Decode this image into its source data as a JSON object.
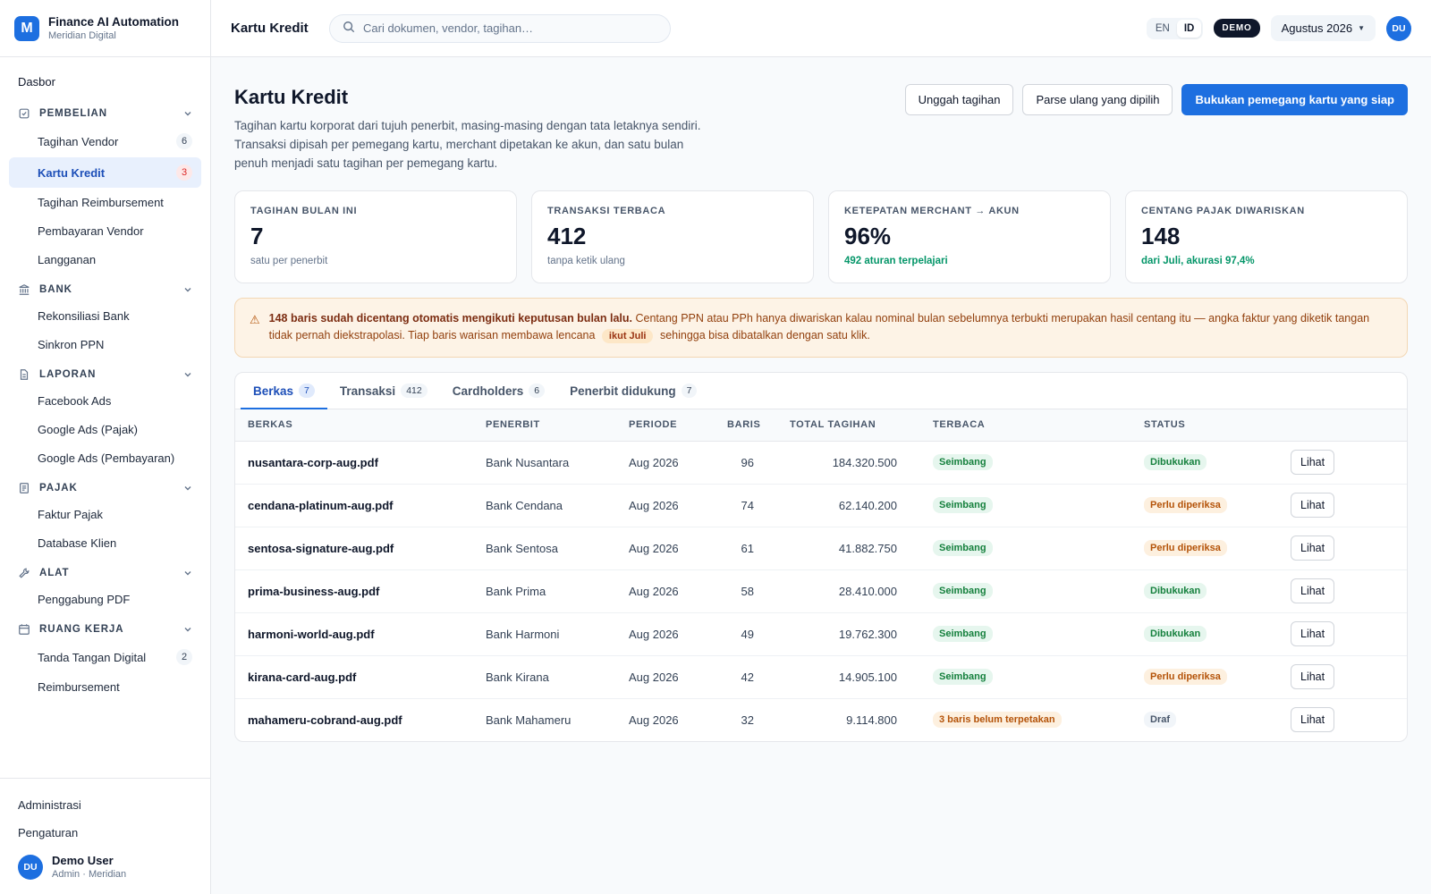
{
  "brand": {
    "logo_letter": "M",
    "name": "Finance AI Automation",
    "org": "Meridian Digital"
  },
  "sidebar": {
    "top_item": "Dasbor",
    "groups": [
      {
        "label": "PEMBELIAN",
        "icon": "cart-icon",
        "items": [
          {
            "label": "Tagihan Vendor",
            "count": "6"
          },
          {
            "label": "Kartu Kredit",
            "count": "3",
            "active": true
          },
          {
            "label": "Tagihan Reimbursement"
          },
          {
            "label": "Pembayaran Vendor"
          },
          {
            "label": "Langganan"
          }
        ]
      },
      {
        "label": "BANK",
        "icon": "bank-icon",
        "items": [
          {
            "label": "Rekonsiliasi Bank"
          },
          {
            "label": "Sinkron PPN"
          }
        ]
      },
      {
        "label": "LAPORAN",
        "icon": "document-icon",
        "items": [
          {
            "label": "Facebook Ads"
          },
          {
            "label": "Google Ads (Pajak)"
          },
          {
            "label": "Google Ads (Pembayaran)"
          }
        ]
      },
      {
        "label": "PAJAK",
        "icon": "receipt-icon",
        "items": [
          {
            "label": "Faktur Pajak"
          },
          {
            "label": "Database Klien"
          }
        ]
      },
      {
        "label": "ALAT",
        "icon": "wrench-icon",
        "items": [
          {
            "label": "Penggabung PDF"
          }
        ]
      },
      {
        "label": "RUANG KERJA",
        "icon": "calendar-icon",
        "items": [
          {
            "label": "Tanda Tangan Digital",
            "count": "2"
          },
          {
            "label": "Reimbursement"
          }
        ]
      }
    ],
    "footer": {
      "admin": "Administrasi",
      "settings": "Pengaturan",
      "user_initials": "DU",
      "user_name": "Demo User",
      "user_role": "Admin · Meridian"
    }
  },
  "topbar": {
    "title": "Kartu Kredit",
    "search_placeholder": "Cari dokumen, vendor, tagihan…",
    "lang_en": "EN",
    "lang_id": "ID",
    "demo_badge": "DEMO",
    "month": "Agustus 2026",
    "avatar": "DU"
  },
  "page": {
    "title": "Kartu Kredit",
    "description": "Tagihan kartu korporat dari tujuh penerbit, masing-masing dengan tata letaknya sendiri. Transaksi dipisah per pemegang kartu, merchant dipetakan ke akun, dan satu bulan penuh menjadi satu tagihan per pemegang kartu.",
    "btn_upload": "Unggah tagihan",
    "btn_reparse": "Parse ulang yang dipilih",
    "btn_book": "Bukukan pemegang kartu yang siap"
  },
  "kpis": [
    {
      "label": "TAGIHAN BULAN INI",
      "value": "7",
      "sub": "satu per penerbit",
      "sub_green": false
    },
    {
      "label": "TRANSAKSI TERBACA",
      "value": "412",
      "sub": "tanpa ketik ulang",
      "sub_green": false
    },
    {
      "label": "KETEPATAN MERCHANT → AKUN",
      "value": "96%",
      "sub": "492 aturan terpelajari",
      "sub_green": true
    },
    {
      "label": "CENTANG PAJAK DIWARISKAN",
      "value": "148",
      "sub": "dari Juli, akurasi 97,4%",
      "sub_green": true
    }
  ],
  "alert": {
    "bold": "148 baris sudah dicentang otomatis mengikuti keputusan bulan lalu.",
    "text": " Centang PPN atau PPh hanya diwariskan kalau nominal bulan sebelumnya terbukti merupakan hasil centang itu — angka faktur yang diketik tangan tidak pernah diekstrapolasi. Tiap baris warisan membawa lencana",
    "badge": "ikut Juli",
    "tail": " sehingga bisa dibatalkan dengan satu klik."
  },
  "tabs": [
    {
      "label": "Berkas",
      "count": "7",
      "active": true
    },
    {
      "label": "Transaksi",
      "count": "412"
    },
    {
      "label": "Cardholders",
      "count": "6"
    },
    {
      "label": "Penerbit didukung",
      "count": "7"
    }
  ],
  "table": {
    "headers": [
      "BERKAS",
      "PENERBIT",
      "PERIODE",
      "BARIS",
      "TOTAL TAGIHAN",
      "TERBACA",
      "STATUS",
      ""
    ],
    "action_label": "Lihat",
    "rows": [
      {
        "file": "nusantara-corp-aug.pdf",
        "issuer": "Bank Nusantara",
        "period": "Aug 2026",
        "rows": "96",
        "total": "184.320.500",
        "read": "Seimbang",
        "read_tone": "green",
        "status": "Dibukukan",
        "status_tone": "green"
      },
      {
        "file": "cendana-platinum-aug.pdf",
        "issuer": "Bank Cendana",
        "period": "Aug 2026",
        "rows": "74",
        "total": "62.140.200",
        "read": "Seimbang",
        "read_tone": "green",
        "status": "Perlu diperiksa",
        "status_tone": "orange"
      },
      {
        "file": "sentosa-signature-aug.pdf",
        "issuer": "Bank Sentosa",
        "period": "Aug 2026",
        "rows": "61",
        "total": "41.882.750",
        "read": "Seimbang",
        "read_tone": "green",
        "status": "Perlu diperiksa",
        "status_tone": "orange"
      },
      {
        "file": "prima-business-aug.pdf",
        "issuer": "Bank Prima",
        "period": "Aug 2026",
        "rows": "58",
        "total": "28.410.000",
        "read": "Seimbang",
        "read_tone": "green",
        "status": "Dibukukan",
        "status_tone": "green"
      },
      {
        "file": "harmoni-world-aug.pdf",
        "issuer": "Bank Harmoni",
        "period": "Aug 2026",
        "rows": "49",
        "total": "19.762.300",
        "read": "Seimbang",
        "read_tone": "green",
        "status": "Dibukukan",
        "status_tone": "green"
      },
      {
        "file": "kirana-card-aug.pdf",
        "issuer": "Bank Kirana",
        "period": "Aug 2026",
        "rows": "42",
        "total": "14.905.100",
        "read": "Seimbang",
        "read_tone": "green",
        "status": "Perlu diperiksa",
        "status_tone": "orange"
      },
      {
        "file": "mahameru-cobrand-aug.pdf",
        "issuer": "Bank Mahameru",
        "period": "Aug 2026",
        "rows": "32",
        "total": "9.114.800",
        "read": "3 baris belum terpetakan",
        "read_tone": "orange",
        "status": "Draf",
        "status_tone": "gray"
      }
    ]
  }
}
